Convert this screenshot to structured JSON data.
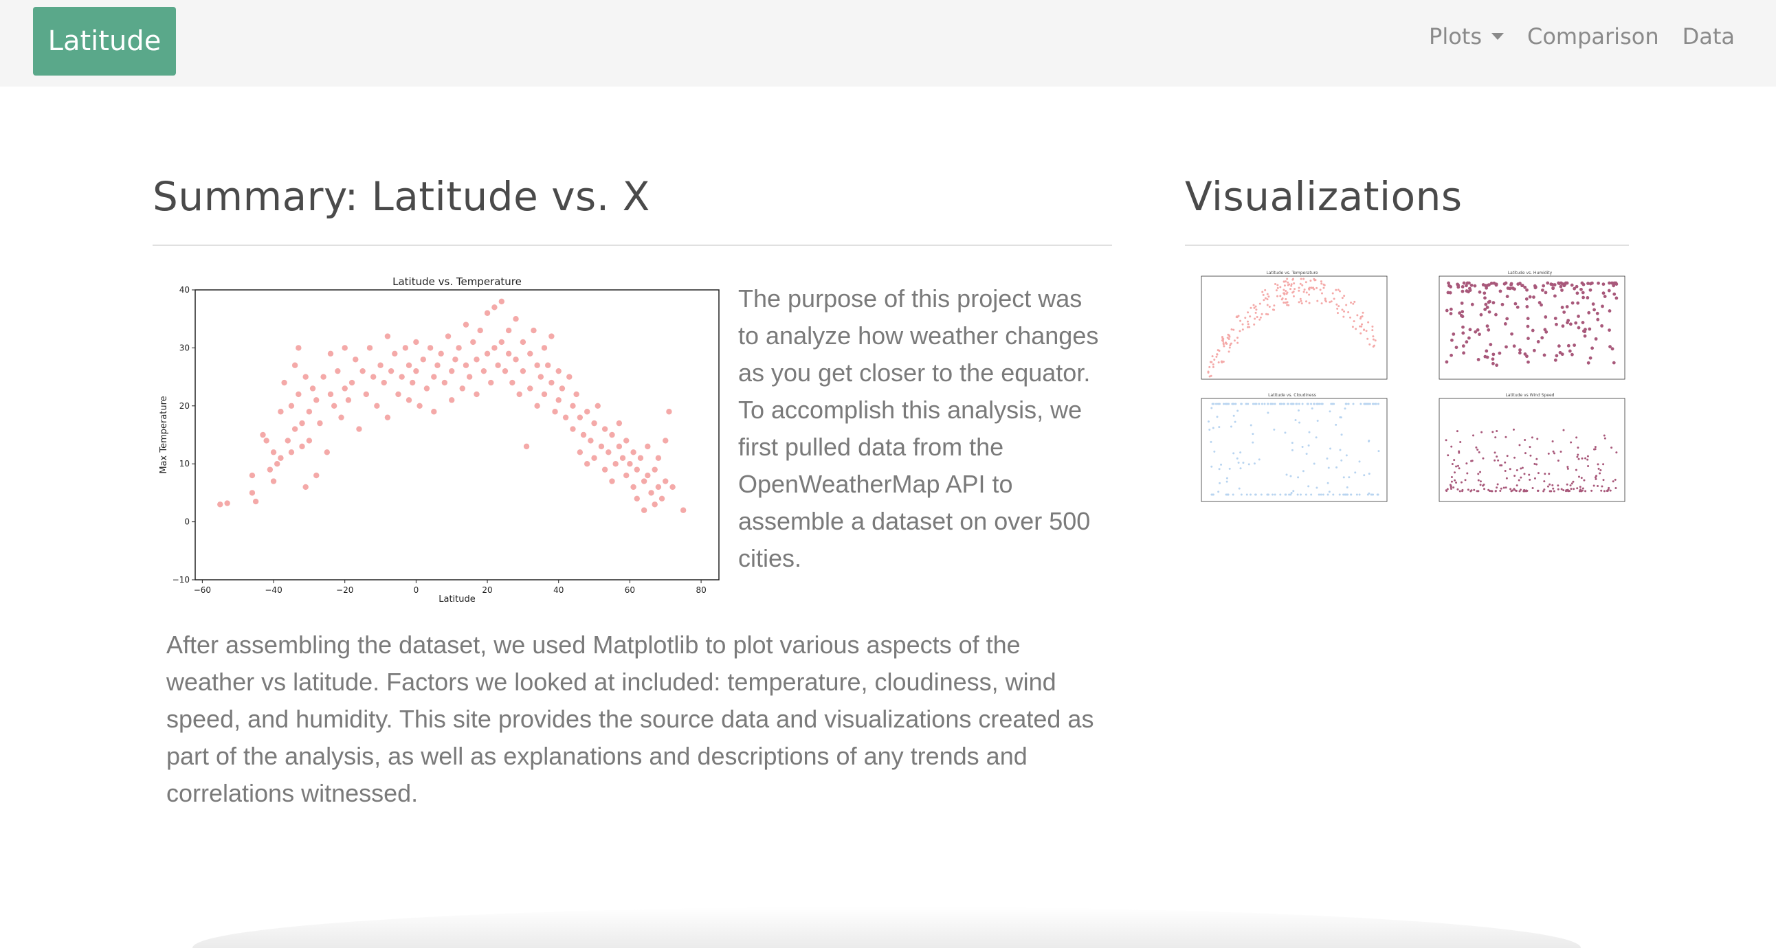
{
  "navbar": {
    "brand": "Latitude",
    "links": [
      {
        "label": "Plots",
        "dropdown": true
      },
      {
        "label": "Comparison"
      },
      {
        "label": "Data"
      }
    ]
  },
  "summary": {
    "heading": "Summary: Latitude vs. X",
    "paragraph_1": "The purpose of this project was to analyze how weather changes as you get closer to the equator. To accomplish this analysis, we first pulled data from the OpenWeatherMap API to assemble a dataset on over 500 cities.",
    "paragraph_2": "After assembling the dataset, we used Matplotlib to plot various aspects of the weather vs latitude. Factors we looked at included: temperature, cloudiness, wind speed, and humidity. This site provides the source data and visualizations created as part of the analysis, as well as explanations and descriptions of any trends and correlations witnessed."
  },
  "visualizations": {
    "heading": "Visualizations",
    "thumbnails": [
      {
        "title": "Latitude vs. Temperature",
        "color": "#f4a9a8"
      },
      {
        "title": "Latitude vs. Humidity",
        "color": "#a8587a"
      },
      {
        "title": "Latitude vs. Cloudiness",
        "color": "#b8d4f0"
      },
      {
        "title": "Latitude vs Wind Speed",
        "color": "#a8587a"
      }
    ]
  },
  "colors": {
    "brand": "#5aa88a",
    "navbar_bg": "#f5f5f5",
    "marker": "#f4a9a8"
  },
  "chart_data": {
    "type": "scatter",
    "title": "Latitude vs. Temperature",
    "xlabel": "Latitude",
    "ylabel": "Max Temperature",
    "xlim": [
      -62,
      85
    ],
    "ylim": [
      -10,
      40
    ],
    "xticks": [
      "−60",
      "−40",
      "−20",
      "0",
      "20",
      "40",
      "60",
      "80"
    ],
    "yticks": [
      "−10",
      "0",
      "10",
      "20",
      "30",
      "40"
    ],
    "color": "#f4a9a8",
    "points": [
      [
        -55,
        3
      ],
      [
        -53,
        3.2
      ],
      [
        -46,
        8
      ],
      [
        -46,
        5
      ],
      [
        -45,
        3.5
      ],
      [
        -43,
        15
      ],
      [
        -42,
        14
      ],
      [
        -41,
        9
      ],
      [
        -40,
        12
      ],
      [
        -40,
        7
      ],
      [
        -39,
        10
      ],
      [
        -38,
        19
      ],
      [
        -38,
        11
      ],
      [
        -37,
        24
      ],
      [
        -36,
        14
      ],
      [
        -35,
        12
      ],
      [
        -35,
        20
      ],
      [
        -34,
        27
      ],
      [
        -34,
        16
      ],
      [
        -33,
        30
      ],
      [
        -33,
        22
      ],
      [
        -32,
        13
      ],
      [
        -32,
        17
      ],
      [
        -31,
        25
      ],
      [
        -31,
        6
      ],
      [
        -30,
        19
      ],
      [
        -30,
        14
      ],
      [
        -29,
        23
      ],
      [
        -28,
        21
      ],
      [
        -28,
        8
      ],
      [
        -27,
        17
      ],
      [
        -26,
        25
      ],
      [
        -25,
        12
      ],
      [
        -24,
        29
      ],
      [
        -24,
        22
      ],
      [
        -23,
        20
      ],
      [
        -22,
        26
      ],
      [
        -21,
        18
      ],
      [
        -20,
        30
      ],
      [
        -20,
        23
      ],
      [
        -19,
        21
      ],
      [
        -18,
        24
      ],
      [
        -17,
        28
      ],
      [
        -16,
        16
      ],
      [
        -15,
        26
      ],
      [
        -14,
        22
      ],
      [
        -13,
        30
      ],
      [
        -12,
        25
      ],
      [
        -11,
        20
      ],
      [
        -10,
        27
      ],
      [
        -9,
        24
      ],
      [
        -8,
        32
      ],
      [
        -8,
        18
      ],
      [
        -7,
        26
      ],
      [
        -6,
        29
      ],
      [
        -5,
        22
      ],
      [
        -4,
        25
      ],
      [
        -3,
        30
      ],
      [
        -2,
        27
      ],
      [
        -2,
        21
      ],
      [
        -1,
        24
      ],
      [
        0,
        31
      ],
      [
        0,
        26
      ],
      [
        1,
        20
      ],
      [
        2,
        28
      ],
      [
        3,
        23
      ],
      [
        4,
        30
      ],
      [
        5,
        25
      ],
      [
        5,
        19
      ],
      [
        6,
        27
      ],
      [
        7,
        29
      ],
      [
        8,
        24
      ],
      [
        9,
        32
      ],
      [
        10,
        26
      ],
      [
        10,
        21
      ],
      [
        11,
        28
      ],
      [
        12,
        30
      ],
      [
        13,
        23
      ],
      [
        14,
        34
      ],
      [
        14,
        27
      ],
      [
        15,
        25
      ],
      [
        16,
        31
      ],
      [
        17,
        22
      ],
      [
        17,
        28
      ],
      [
        18,
        33
      ],
      [
        19,
        26
      ],
      [
        20,
        36
      ],
      [
        20,
        29
      ],
      [
        21,
        24
      ],
      [
        22,
        30
      ],
      [
        22,
        37
      ],
      [
        23,
        27
      ],
      [
        24,
        38
      ],
      [
        24,
        31
      ],
      [
        25,
        26
      ],
      [
        26,
        29
      ],
      [
        26,
        33
      ],
      [
        27,
        24
      ],
      [
        28,
        35
      ],
      [
        28,
        28
      ],
      [
        29,
        22
      ],
      [
        30,
        31
      ],
      [
        30,
        26
      ],
      [
        31,
        13
      ],
      [
        32,
        29
      ],
      [
        32,
        23
      ],
      [
        33,
        33
      ],
      [
        34,
        27
      ],
      [
        34,
        20
      ],
      [
        35,
        25
      ],
      [
        36,
        30
      ],
      [
        36,
        22
      ],
      [
        37,
        27
      ],
      [
        38,
        24
      ],
      [
        38,
        32
      ],
      [
        39,
        19
      ],
      [
        40,
        26
      ],
      [
        40,
        21
      ],
      [
        41,
        23
      ],
      [
        42,
        18
      ],
      [
        43,
        25
      ],
      [
        44,
        20
      ],
      [
        44,
        16
      ],
      [
        45,
        22
      ],
      [
        46,
        12
      ],
      [
        46,
        18
      ],
      [
        47,
        15
      ],
      [
        48,
        19
      ],
      [
        48,
        10
      ],
      [
        49,
        14
      ],
      [
        50,
        17
      ],
      [
        50,
        11
      ],
      [
        51,
        20
      ],
      [
        52,
        13
      ],
      [
        53,
        9
      ],
      [
        53,
        16
      ],
      [
        54,
        12
      ],
      [
        55,
        15
      ],
      [
        55,
        7
      ],
      [
        56,
        10
      ],
      [
        57,
        13
      ],
      [
        57,
        17
      ],
      [
        58,
        11
      ],
      [
        59,
        8
      ],
      [
        59,
        14
      ],
      [
        60,
        10
      ],
      [
        61,
        6
      ],
      [
        61,
        12
      ],
      [
        62,
        9
      ],
      [
        62,
        4
      ],
      [
        63,
        11
      ],
      [
        64,
        7
      ],
      [
        64,
        2
      ],
      [
        65,
        8
      ],
      [
        65,
        13
      ],
      [
        66,
        5
      ],
      [
        67,
        9
      ],
      [
        67,
        3
      ],
      [
        68,
        6
      ],
      [
        68,
        11
      ],
      [
        69,
        4
      ],
      [
        70,
        7
      ],
      [
        70,
        14
      ],
      [
        71,
        19
      ],
      [
        72,
        6
      ],
      [
        75,
        2
      ]
    ]
  }
}
